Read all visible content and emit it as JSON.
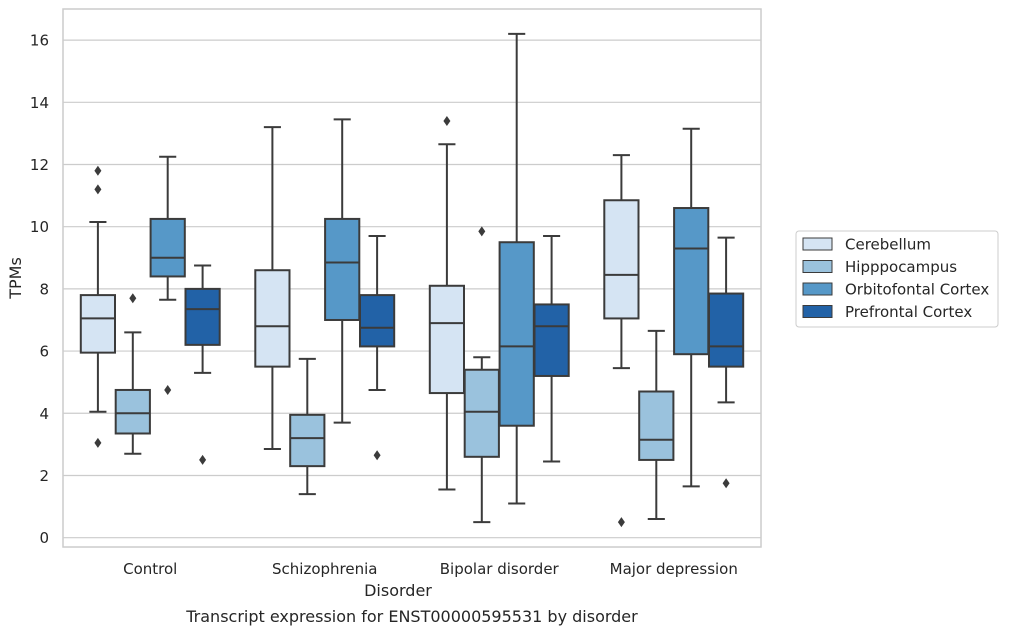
{
  "chart_data": {
    "type": "boxplot",
    "xlabel": "Disorder",
    "ylabel": "TPMs",
    "caption": "Transcript expression for ENST00000595531 by disorder",
    "ylim": [
      -0.3,
      17
    ],
    "yticks": [
      0,
      2,
      4,
      6,
      8,
      10,
      12,
      14,
      16
    ],
    "grid": true,
    "legend_position": "right",
    "categories": [
      "Control",
      "Schizophrenia",
      "Bipolar disorder",
      "Major depression"
    ],
    "series": [
      {
        "name": "Cerebellum",
        "color": "#d5e4f3",
        "boxes": [
          {
            "whislo": 4.05,
            "q1": 5.95,
            "med": 7.05,
            "q3": 7.8,
            "whishi": 10.15,
            "fliers": [
              11.8,
              11.2,
              3.05
            ]
          },
          {
            "whislo": 2.85,
            "q1": 5.5,
            "med": 6.8,
            "q3": 8.6,
            "whishi": 13.2,
            "fliers": []
          },
          {
            "whislo": 1.55,
            "q1": 4.65,
            "med": 6.9,
            "q3": 8.1,
            "whishi": 12.65,
            "fliers": [
              13.4
            ]
          },
          {
            "whislo": 5.45,
            "q1": 7.05,
            "med": 8.45,
            "q3": 10.85,
            "whishi": 12.3,
            "fliers": [
              0.5
            ]
          }
        ]
      },
      {
        "name": "Hipppocampus",
        "color": "#9ac2dd",
        "boxes": [
          {
            "whislo": 2.7,
            "q1": 3.35,
            "med": 4.0,
            "q3": 4.75,
            "whishi": 6.6,
            "fliers": [
              7.7
            ]
          },
          {
            "whislo": 1.4,
            "q1": 2.3,
            "med": 3.2,
            "q3": 3.95,
            "whishi": 5.75,
            "fliers": []
          },
          {
            "whislo": 0.5,
            "q1": 2.6,
            "med": 4.05,
            "q3": 5.4,
            "whishi": 5.8,
            "fliers": [
              9.85
            ]
          },
          {
            "whislo": 0.6,
            "q1": 2.5,
            "med": 3.15,
            "q3": 4.7,
            "whishi": 6.65,
            "fliers": []
          }
        ]
      },
      {
        "name": "Orbitofontal Cortex",
        "color": "#5698c8",
        "boxes": [
          {
            "whislo": 7.65,
            "q1": 8.4,
            "med": 9.0,
            "q3": 10.25,
            "whishi": 12.25,
            "fliers": [
              4.75
            ]
          },
          {
            "whislo": 3.7,
            "q1": 7.0,
            "med": 8.85,
            "q3": 10.25,
            "whishi": 13.45,
            "fliers": []
          },
          {
            "whislo": 1.1,
            "q1": 3.6,
            "med": 6.15,
            "q3": 9.5,
            "whishi": 16.2,
            "fliers": []
          },
          {
            "whislo": 1.65,
            "q1": 5.9,
            "med": 9.3,
            "q3": 10.6,
            "whishi": 13.15,
            "fliers": []
          }
        ]
      },
      {
        "name": "Prefrontal Cortex",
        "color": "#2262a7",
        "boxes": [
          {
            "whislo": 5.3,
            "q1": 6.2,
            "med": 7.35,
            "q3": 8.0,
            "whishi": 8.75,
            "fliers": [
              2.5
            ]
          },
          {
            "whislo": 4.75,
            "q1": 6.15,
            "med": 6.75,
            "q3": 7.8,
            "whishi": 9.7,
            "fliers": [
              2.65
            ]
          },
          {
            "whislo": 2.45,
            "q1": 5.2,
            "med": 6.8,
            "q3": 7.5,
            "whishi": 9.7,
            "fliers": []
          },
          {
            "whislo": 4.35,
            "q1": 5.5,
            "med": 6.15,
            "q3": 7.85,
            "whishi": 9.65,
            "fliers": [
              1.75
            ]
          }
        ]
      }
    ]
  }
}
